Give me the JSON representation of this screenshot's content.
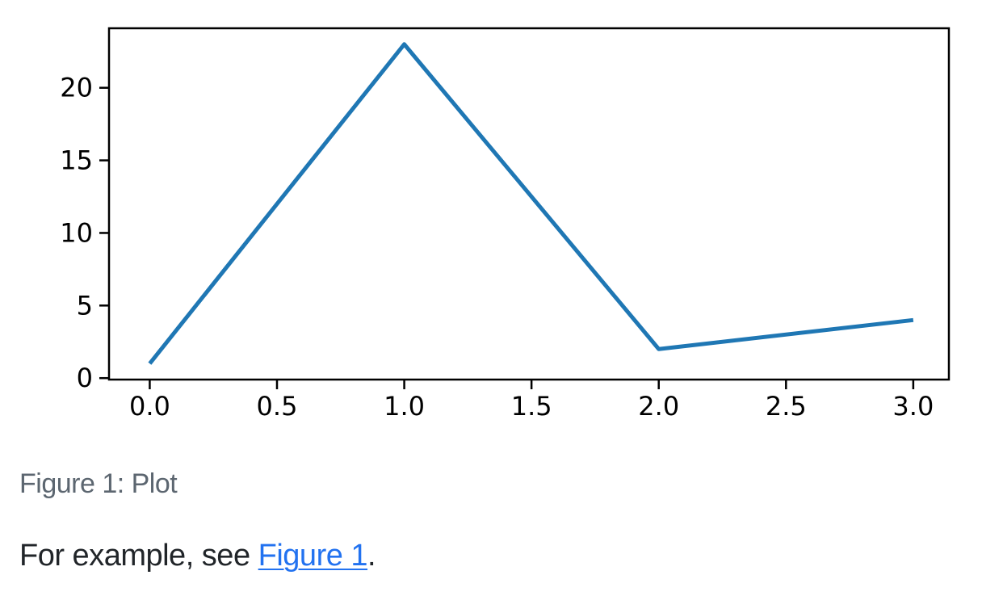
{
  "figure": {
    "caption": "Figure 1: Plot",
    "caption_color": "#5c6670"
  },
  "paragraph": {
    "before_link": "For example, see ",
    "link_text": "Figure 1",
    "after_link": ".",
    "text_color": "#212529",
    "link_color": "#2272f0"
  },
  "chart_data": {
    "type": "line",
    "x": [
      0,
      1,
      2,
      3
    ],
    "y": [
      1,
      23,
      2,
      4
    ],
    "series_name": "",
    "title": "",
    "xlabel": "",
    "ylabel": "",
    "xticks": [
      0.0,
      0.5,
      1.0,
      1.5,
      2.0,
      2.5,
      3.0
    ],
    "xtick_labels": [
      "0.0",
      "0.5",
      "1.0",
      "1.5",
      "2.0",
      "2.5",
      "3.0"
    ],
    "yticks": [
      0,
      5,
      10,
      15,
      20
    ],
    "ytick_labels": [
      "0",
      "5",
      "10",
      "15",
      "20"
    ],
    "xlim": [
      -0.16,
      3.14
    ],
    "ylim": [
      -0.1,
      24.1
    ],
    "grid": false,
    "legend": "none",
    "line_color": "#1f77b4",
    "axis_color": "#000000",
    "tick_label_color": "#000000"
  }
}
